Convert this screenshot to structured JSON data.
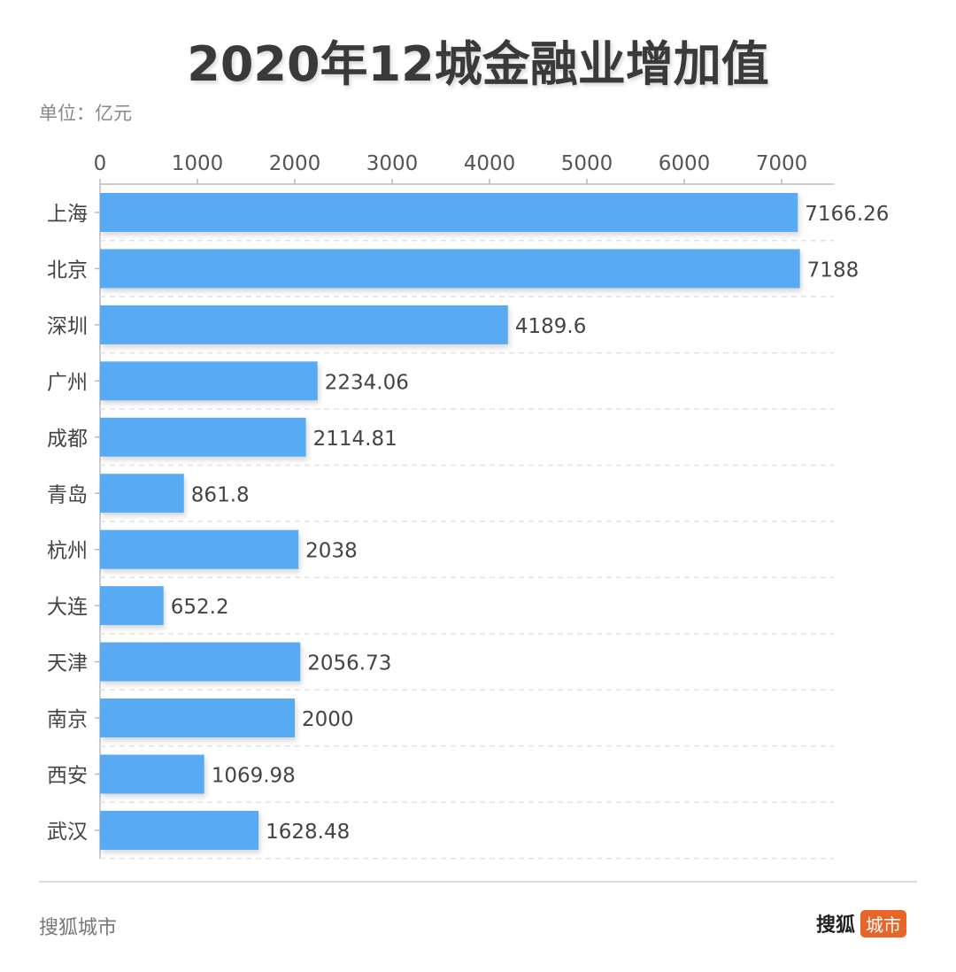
{
  "chart_data": {
    "type": "bar",
    "orientation": "horizontal",
    "title": "2020年12城金融业增加值",
    "unit_label": "单位：亿元",
    "categories": [
      "上海",
      "北京",
      "深圳",
      "广州",
      "成都",
      "青岛",
      "杭州",
      "大连",
      "天津",
      "南京",
      "西安",
      "武汉"
    ],
    "values": [
      7166.26,
      7188,
      4189.6,
      2234.06,
      2114.81,
      861.8,
      2038,
      652.2,
      2056.73,
      2000,
      1069.98,
      1628.48
    ],
    "value_labels": [
      "7166.26",
      "7188",
      "4189.6",
      "2234.06",
      "2114.81",
      "861.8",
      "2038",
      "652.2",
      "2056.73",
      "2000",
      "1069.98",
      "1628.48"
    ],
    "xticks": [
      0,
      1000,
      2000,
      3000,
      4000,
      5000,
      6000,
      7000
    ],
    "xlim": [
      0,
      7550
    ],
    "x_axis_position": "top",
    "grid": "dashed horizontal",
    "bar_color": "#58abf2"
  },
  "footer": {
    "source": "搜狐城市",
    "logo_text": "搜狐",
    "logo_badge": "城市",
    "logo_badge_color": "#e8652a"
  }
}
